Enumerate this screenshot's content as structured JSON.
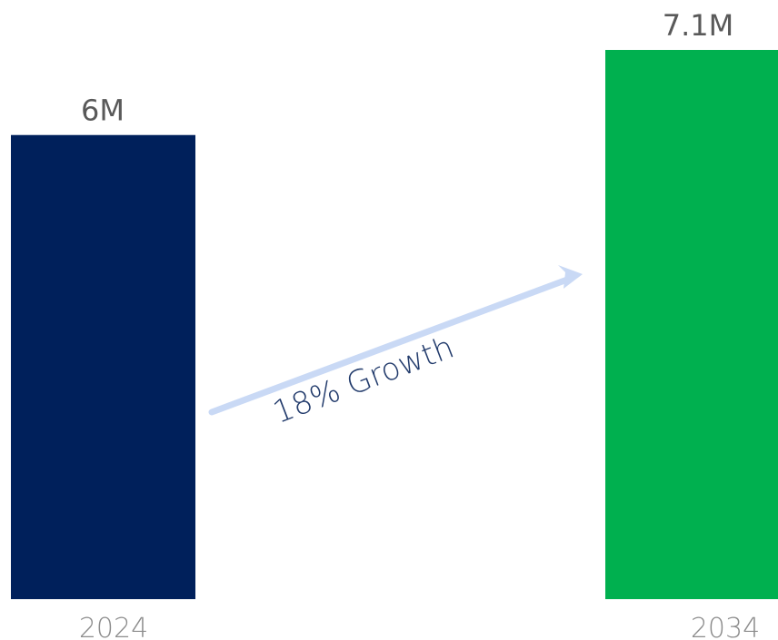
{
  "chart_data": {
    "type": "bar",
    "categories": [
      "2024",
      "2034"
    ],
    "values": [
      6,
      7.1
    ],
    "value_labels": [
      "6M",
      "7.1M"
    ],
    "ylim": [
      0,
      7.1
    ],
    "colors": [
      "#00205b",
      "#00b04f"
    ],
    "annotation": {
      "text": "18% Growth",
      "arrow_color": "#c9d9f5",
      "text_color": "#213a6b"
    },
    "grid": false,
    "legend": "none"
  }
}
